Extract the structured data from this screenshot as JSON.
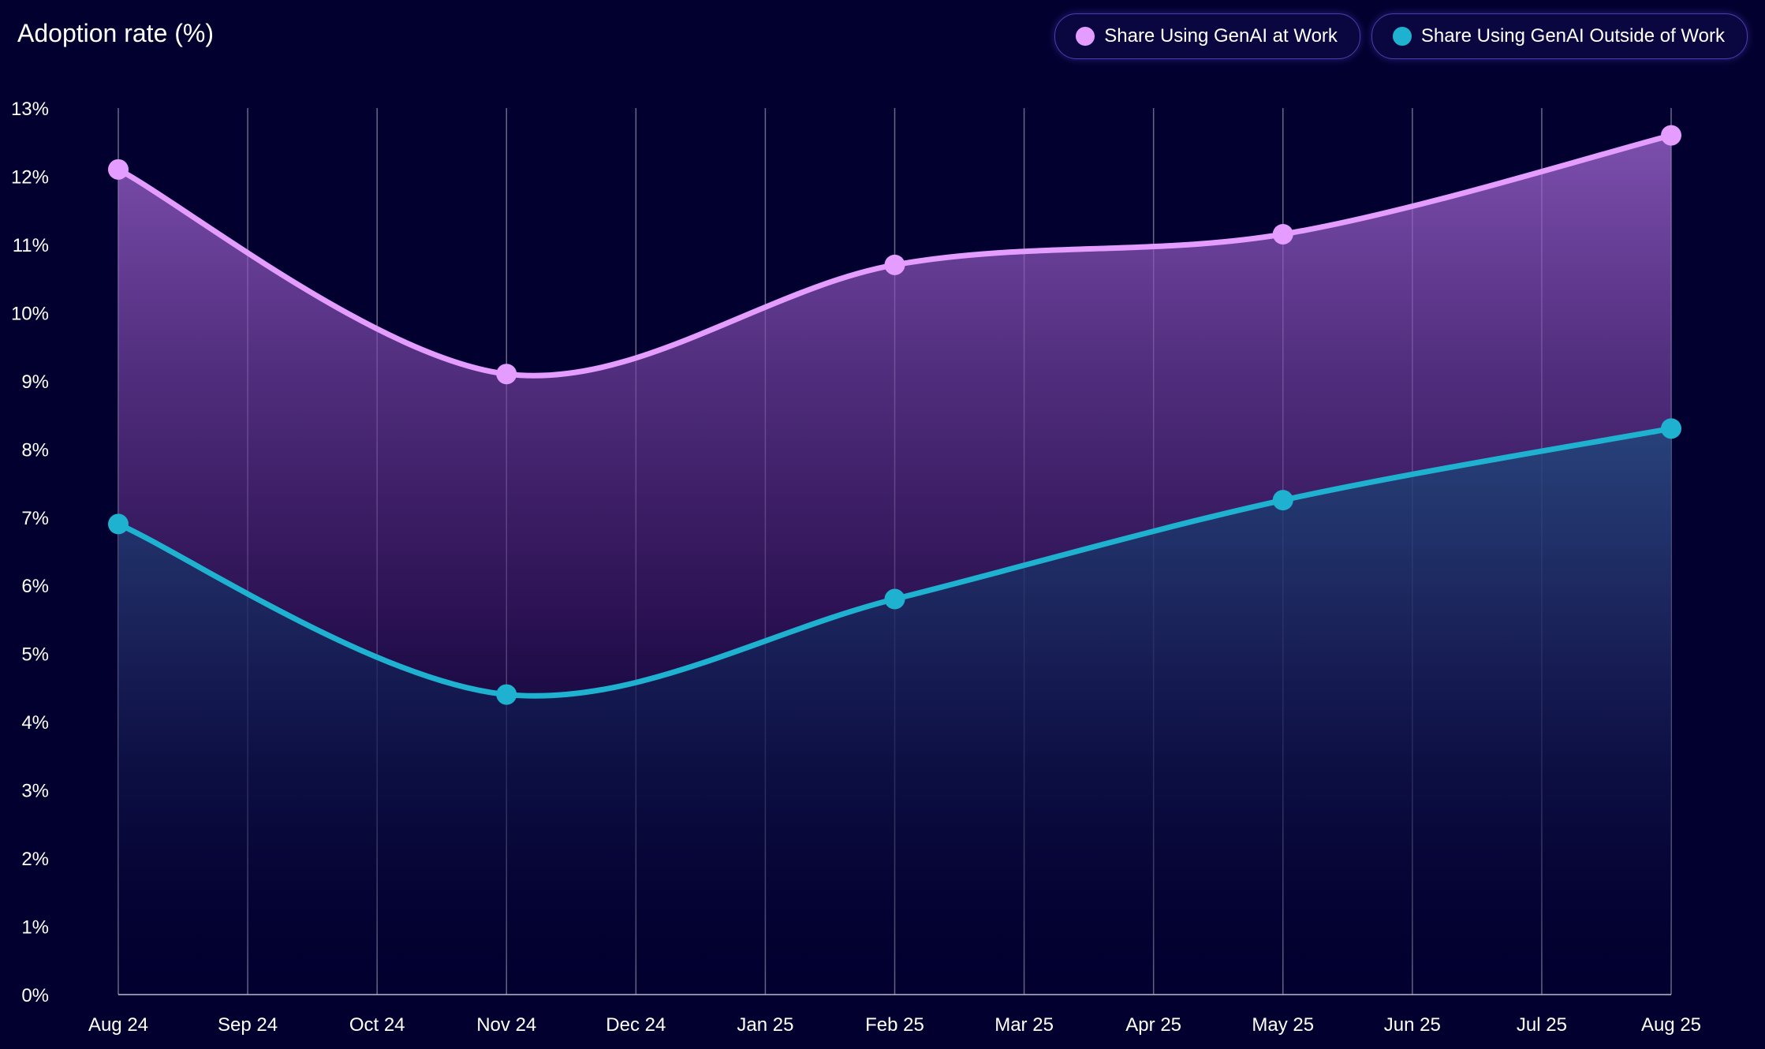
{
  "header": {
    "title": "Adoption rate (%)"
  },
  "colors": {
    "background": "#02002f",
    "work": "#e59cff",
    "outside": "#1fb2d0"
  },
  "chart_data": {
    "type": "area",
    "title": "",
    "xlabel": "",
    "ylabel": "Adoption rate (%)",
    "categories": [
      "Aug 24",
      "Sep 24",
      "Oct 24",
      "Nov 24",
      "Dec 24",
      "Jan 25",
      "Feb 25",
      "Mar 25",
      "Apr 25",
      "May 25",
      "Jun 25",
      "Jul 25",
      "Aug 25"
    ],
    "ylim": [
      0,
      13
    ],
    "yticks": [
      "0%",
      "1%",
      "2%",
      "3%",
      "4%",
      "5%",
      "6%",
      "7%",
      "8%",
      "9%",
      "10%",
      "11%",
      "12%",
      "13%"
    ],
    "grid": "vertical",
    "legend_position": "top-right",
    "series": [
      {
        "name": "Share Using GenAI at Work",
        "color": "#e59cff",
        "points": [
          {
            "x": "Aug 24",
            "y": 12.1
          },
          {
            "x": "Nov 24",
            "y": 9.1
          },
          {
            "x": "Feb 25",
            "y": 10.7
          },
          {
            "x": "May 25",
            "y": 11.15
          },
          {
            "x": "Aug 25",
            "y": 12.6
          }
        ]
      },
      {
        "name": "Share Using GenAI Outside of Work",
        "color": "#1fb2d0",
        "points": [
          {
            "x": "Aug 24",
            "y": 6.9
          },
          {
            "x": "Nov 24",
            "y": 4.4
          },
          {
            "x": "Feb 25",
            "y": 5.8
          },
          {
            "x": "May 25",
            "y": 7.25
          },
          {
            "x": "Aug 25",
            "y": 8.3
          }
        ]
      }
    ]
  }
}
